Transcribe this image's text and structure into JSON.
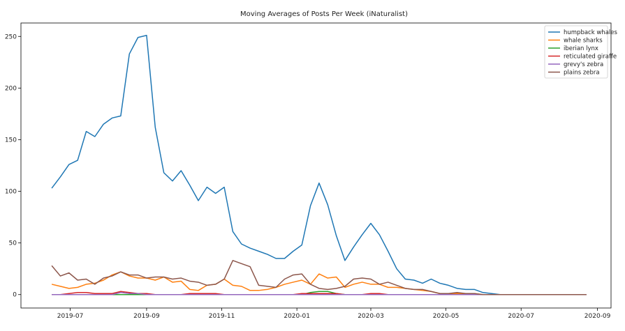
{
  "chart_data": {
    "type": "line",
    "title": "Moving Averages of Posts Per Week (iNaturalist)",
    "xlabel": "",
    "ylabel": "",
    "x_tick_labels": [
      "2019-07",
      "2019-09",
      "2019-11",
      "2020-01",
      "2020-03",
      "2020-05",
      "2020-07",
      "2020-09"
    ],
    "y_tick_labels": [
      "0",
      "50",
      "100",
      "150",
      "200",
      "250"
    ],
    "y_ticks": [
      0,
      50,
      100,
      150,
      200,
      250
    ],
    "xlim": [
      "2019-05-22",
      "2020-09-12"
    ],
    "ylim": [
      -13,
      263
    ],
    "grid": false,
    "legend_position": "top-right",
    "x": [
      "2019-06-16",
      "2019-06-23",
      "2019-06-30",
      "2019-07-07",
      "2019-07-14",
      "2019-07-21",
      "2019-07-28",
      "2019-08-04",
      "2019-08-11",
      "2019-08-18",
      "2019-08-25",
      "2019-09-01",
      "2019-09-08",
      "2019-09-15",
      "2019-09-22",
      "2019-09-29",
      "2019-10-06",
      "2019-10-13",
      "2019-10-20",
      "2019-10-27",
      "2019-11-03",
      "2019-11-10",
      "2019-11-17",
      "2019-11-24",
      "2019-12-01",
      "2019-12-08",
      "2019-12-15",
      "2019-12-22",
      "2019-12-29",
      "2020-01-05",
      "2020-01-12",
      "2020-01-19",
      "2020-01-26",
      "2020-02-02",
      "2020-02-09",
      "2020-02-16",
      "2020-02-23",
      "2020-03-01",
      "2020-03-08",
      "2020-03-15",
      "2020-03-22",
      "2020-03-29",
      "2020-04-05",
      "2020-04-12",
      "2020-04-19",
      "2020-04-26",
      "2020-05-03",
      "2020-05-10",
      "2020-05-17",
      "2020-05-24",
      "2020-05-31",
      "2020-06-07",
      "2020-06-14",
      "2020-06-21",
      "2020-06-28",
      "2020-07-05",
      "2020-07-12",
      "2020-07-19",
      "2020-07-26",
      "2020-08-02",
      "2020-08-09",
      "2020-08-16",
      "2020-08-23"
    ],
    "series": [
      {
        "name": "humpback whales",
        "color": "#1f77b4",
        "values": [
          103,
          114,
          126,
          130,
          158,
          153,
          165,
          171,
          173,
          233,
          249,
          251,
          162,
          118,
          110,
          120,
          106,
          91,
          104,
          98,
          104,
          61,
          49,
          45,
          42,
          39,
          35,
          35,
          42,
          48,
          86,
          108,
          87,
          57,
          33,
          46,
          58,
          69,
          58,
          42,
          25,
          15,
          14,
          11,
          15,
          11,
          9,
          6,
          5,
          5,
          2,
          1,
          0,
          0,
          0,
          0,
          0,
          0,
          0,
          0,
          0,
          0,
          0
        ]
      },
      {
        "name": "whale sharks",
        "color": "#ff7f0e",
        "values": [
          10,
          8,
          6,
          7,
          10,
          11,
          14,
          19,
          22,
          18,
          16,
          16,
          14,
          17,
          12,
          13,
          5,
          4,
          9,
          10,
          15,
          9,
          8,
          4,
          4,
          5,
          7,
          10,
          12,
          14,
          10,
          20,
          16,
          17,
          7,
          10,
          12,
          10,
          10,
          7,
          7,
          6,
          5,
          4,
          3,
          1,
          1,
          1,
          1,
          1,
          0,
          0,
          0,
          0,
          0,
          0,
          0,
          0,
          0,
          0,
          0,
          0,
          0
        ]
      },
      {
        "name": "iberian lynx",
        "color": "#2ca02c",
        "values": [
          0,
          0,
          0,
          0,
          0,
          0,
          0,
          0,
          0,
          0,
          0,
          0,
          0,
          0,
          0,
          0,
          0,
          0,
          0,
          0,
          0,
          0,
          0,
          0,
          0,
          0,
          0,
          0,
          0,
          0,
          2,
          3,
          3,
          1,
          0,
          0,
          0,
          0,
          0,
          0,
          0,
          0,
          0,
          0,
          0,
          0,
          0,
          0,
          0,
          0,
          0,
          0,
          0,
          0,
          0,
          0,
          0,
          0,
          0,
          0,
          0,
          0,
          0
        ]
      },
      {
        "name": "reticulated giraffe",
        "color": "#d62728",
        "values": [
          0,
          0,
          1,
          2,
          2,
          1,
          1,
          1,
          3,
          2,
          1,
          1,
          0,
          0,
          0,
          0,
          1,
          1,
          1,
          1,
          0,
          0,
          0,
          0,
          0,
          0,
          0,
          0,
          0,
          1,
          1,
          1,
          1,
          1,
          0,
          0,
          0,
          1,
          1,
          0,
          0,
          0,
          0,
          0,
          0,
          0,
          0,
          0,
          0,
          0,
          0,
          0,
          0,
          0,
          0,
          0,
          0,
          0,
          0,
          0,
          0,
          0,
          0
        ]
      },
      {
        "name": "grevy's zebra",
        "color": "#9467bd",
        "values": [
          0,
          0,
          0,
          0,
          0,
          0,
          0,
          0,
          2,
          1,
          1,
          0,
          0,
          0,
          0,
          0,
          0,
          0,
          0,
          0,
          0,
          0,
          0,
          0,
          0,
          0,
          0,
          0,
          0,
          0,
          0,
          0,
          0,
          0,
          0,
          0,
          0,
          0,
          0,
          0,
          0,
          0,
          0,
          0,
          0,
          0,
          0,
          0,
          0,
          0,
          0,
          0,
          0,
          0,
          0,
          0,
          0,
          0,
          0,
          0,
          0,
          0,
          0
        ]
      },
      {
        "name": "plains zebra",
        "color": "#8c564b",
        "values": [
          28,
          18,
          21,
          14,
          15,
          10,
          16,
          18,
          22,
          19,
          19,
          16,
          17,
          17,
          15,
          16,
          13,
          12,
          9,
          10,
          15,
          33,
          30,
          27,
          9,
          8,
          7,
          15,
          19,
          20,
          10,
          6,
          5,
          6,
          8,
          15,
          16,
          15,
          10,
          12,
          9,
          6,
          5,
          5,
          3,
          1,
          1,
          2,
          1,
          1,
          0,
          0,
          0,
          0,
          0,
          0,
          0,
          0,
          0,
          0,
          0,
          0,
          0
        ]
      }
    ]
  }
}
